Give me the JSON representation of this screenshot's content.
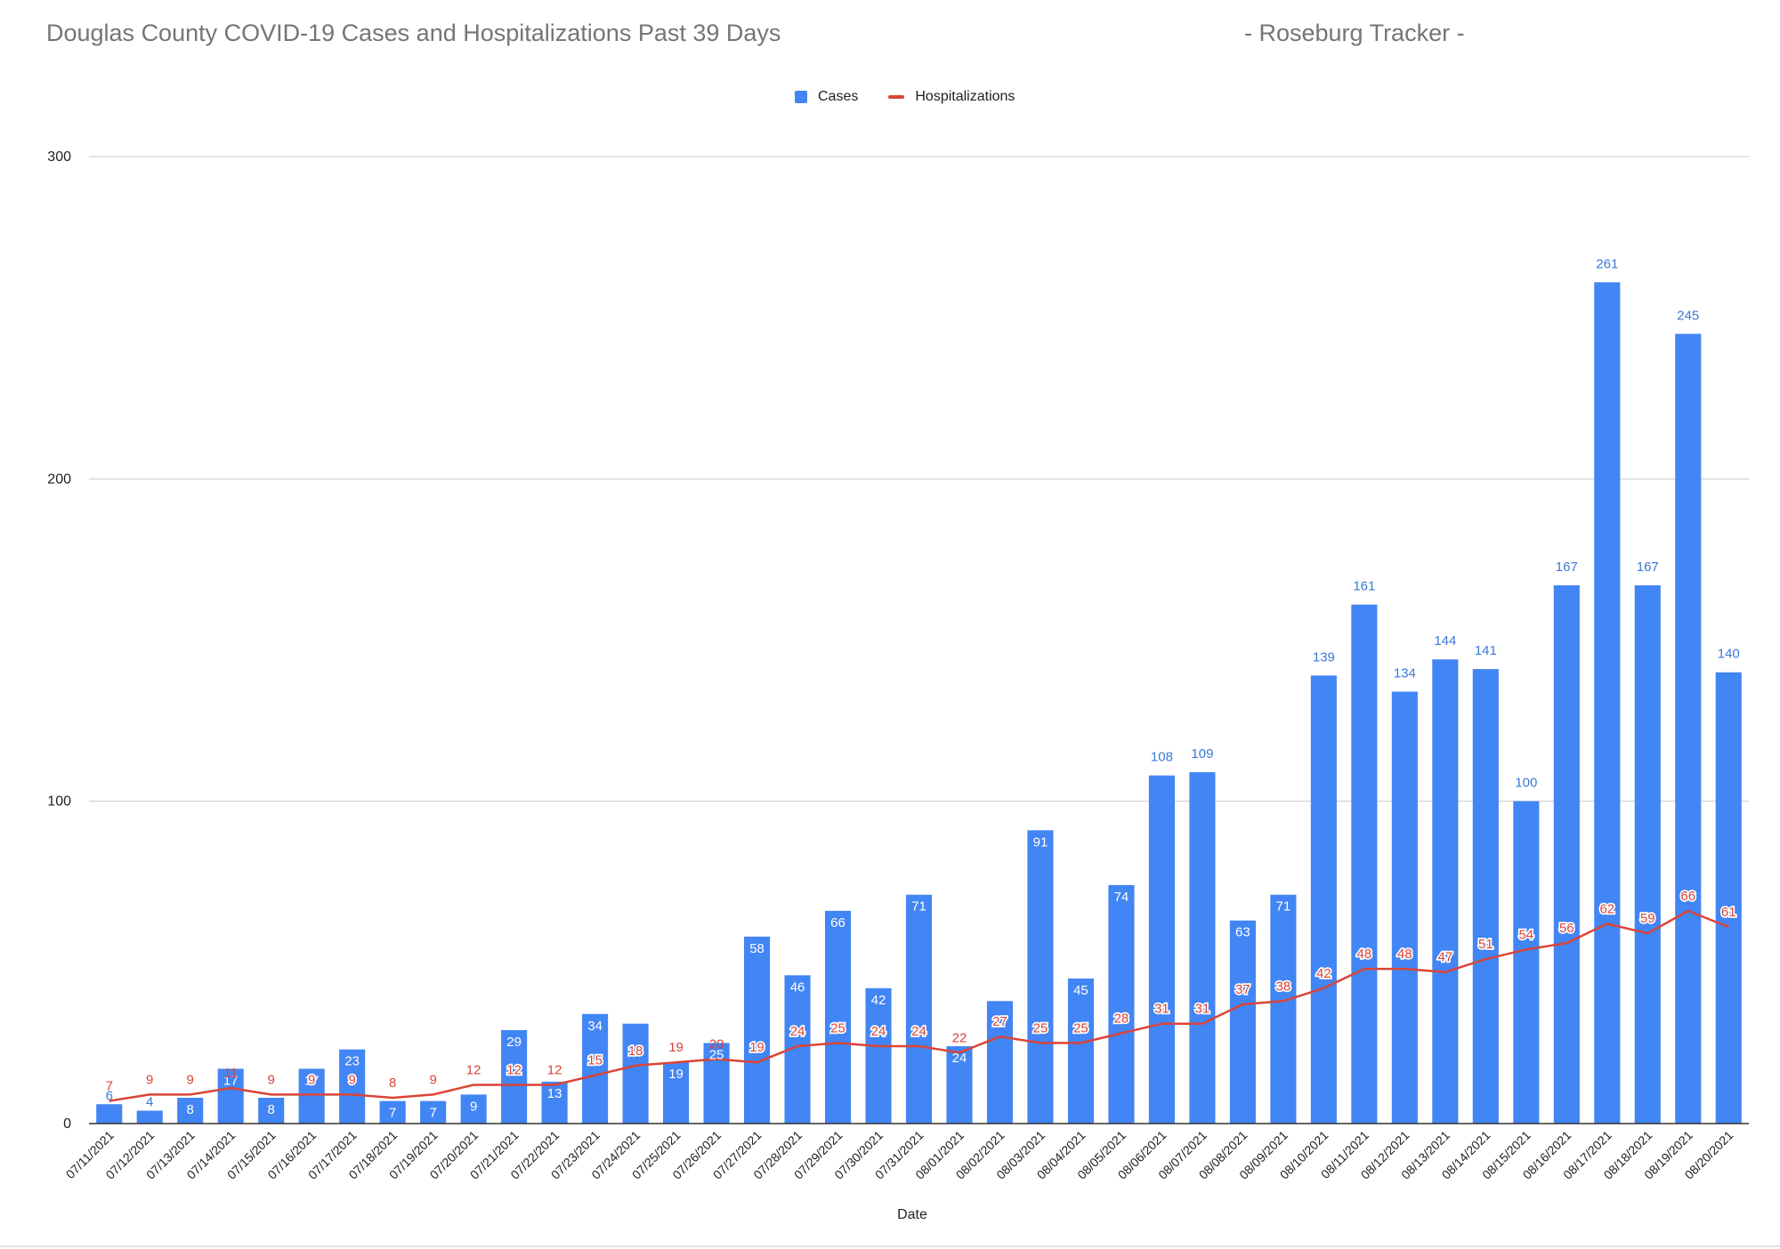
{
  "header": {
    "title": "Douglas County COVID-19 Cases and Hospitalizations Past 39 Days",
    "brand": "- Roseburg Tracker -"
  },
  "legend": {
    "cases_label": "Cases",
    "hosp_label": "Hospitalizations"
  },
  "colors": {
    "cases": "#4285f4",
    "hospitalizations": "#db4437",
    "case_label_outside": "#3b78d8",
    "grid": "#cccccc"
  },
  "chart_data": {
    "type": "bar",
    "combo": "bar+line",
    "title": "Douglas County COVID-19 Cases and Hospitalizations Past 39 Days",
    "xlabel": "Date",
    "ylabel": "",
    "ylim": [
      0,
      300
    ],
    "yticks": [
      0,
      100,
      200,
      300
    ],
    "grid": true,
    "legend_position": "top-center",
    "categories": [
      "07/11/2021",
      "07/12/2021",
      "07/13/2021",
      "07/14/2021",
      "07/15/2021",
      "07/16/2021",
      "07/17/2021",
      "07/18/2021",
      "07/19/2021",
      "07/20/2021",
      "07/21/2021",
      "07/22/2021",
      "07/23/2021",
      "07/24/2021",
      "07/25/2021",
      "07/26/2021",
      "07/27/2021",
      "07/28/2021",
      "07/29/2021",
      "07/30/2021",
      "07/31/2021",
      "08/01/2021",
      "08/02/2021",
      "08/03/2021",
      "08/04/2021",
      "08/05/2021",
      "08/06/2021",
      "08/07/2021",
      "08/08/2021",
      "08/09/2021",
      "08/10/2021",
      "08/11/2021",
      "08/12/2021",
      "08/13/2021",
      "08/14/2021",
      "08/15/2021",
      "08/16/2021",
      "08/17/2021",
      "08/18/2021",
      "08/19/2021",
      "08/20/2021"
    ],
    "series": [
      {
        "name": "Cases",
        "type": "bar",
        "values": [
          6,
          4,
          8,
          17,
          8,
          17,
          23,
          7,
          7,
          9,
          29,
          13,
          34,
          31,
          19,
          25,
          58,
          46,
          66,
          42,
          71,
          24,
          38,
          91,
          45,
          74,
          108,
          109,
          63,
          71,
          139,
          161,
          134,
          144,
          141,
          100,
          167,
          261,
          167,
          245,
          140
        ],
        "labels": [
          "6",
          "4",
          "8",
          "17",
          "8",
          "17",
          "23",
          "7",
          "7",
          "9",
          "29",
          "13",
          "34",
          "",
          "19",
          "25",
          "58",
          "46",
          "66",
          "42",
          "71",
          "24",
          "",
          "91",
          "45",
          "74",
          "108",
          "109",
          "63",
          "71",
          "139",
          "161",
          "134",
          "144",
          "141",
          "100",
          "167",
          "261",
          "167",
          "245",
          "140"
        ]
      },
      {
        "name": "Hospitalizations",
        "type": "line",
        "values": [
          7,
          9,
          9,
          11,
          9,
          9,
          9,
          8,
          9,
          12,
          12,
          12,
          15,
          18,
          19,
          20,
          19,
          24,
          25,
          24,
          24,
          22,
          27,
          25,
          25,
          28,
          31,
          31,
          37,
          38,
          42,
          48,
          48,
          47,
          51,
          54,
          56,
          62,
          59,
          66,
          61
        ]
      }
    ]
  }
}
